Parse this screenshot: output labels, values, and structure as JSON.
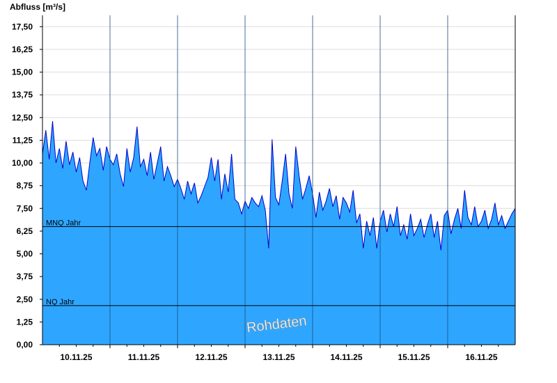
{
  "chart_data": {
    "type": "area",
    "ylabel": "Abfluss [m³/s]",
    "ylim": [
      0,
      18.125
    ],
    "yticks": [
      "0,00",
      "1,25",
      "2,50",
      "3,75",
      "5,00",
      "6,25",
      "7,50",
      "8,75",
      "10,00",
      "11,25",
      "12,50",
      "13,75",
      "15,00",
      "16,25",
      "17,50"
    ],
    "ytick_values": [
      0,
      1.25,
      2.5,
      3.75,
      5,
      6.25,
      7.5,
      8.75,
      10,
      11.25,
      12.5,
      13.75,
      15,
      16.25,
      17.5
    ],
    "xlim": [
      0,
      7
    ],
    "xticks": [
      "10.11.25",
      "11.11.25",
      "12.11.25",
      "13.11.25",
      "14.11.25",
      "15.11.25",
      "16.11.25"
    ],
    "xtick_positions": [
      0.5,
      1.5,
      2.5,
      3.5,
      4.5,
      5.5,
      6.5
    ],
    "day_boundaries": [
      1,
      2,
      3,
      4,
      5,
      6
    ],
    "grid": true,
    "reference_lines": [
      {
        "label": "MNQ Jahr",
        "value": 6.5
      },
      {
        "label": "NQ Jahr",
        "value": 2.15
      }
    ],
    "watermark": "Rohdaten",
    "colors": {
      "fill": "#2ea6ff",
      "line": "#0000cc",
      "grid": "#dddddd"
    },
    "series": [
      {
        "x": [
          0,
          0.05,
          0.1,
          0.15,
          0.2,
          0.25,
          0.3,
          0.35,
          0.4,
          0.45,
          0.5,
          0.55,
          0.6,
          0.65,
          0.7,
          0.75,
          0.8,
          0.85,
          0.9,
          0.95,
          1,
          1.05,
          1.1,
          1.15,
          1.2,
          1.25,
          1.3,
          1.35,
          1.4,
          1.45,
          1.5,
          1.55,
          1.6,
          1.65,
          1.7,
          1.75,
          1.8,
          1.85,
          1.9,
          1.95,
          2,
          2.05,
          2.1,
          2.15,
          2.2,
          2.25,
          2.3,
          2.35,
          2.4,
          2.45,
          2.5,
          2.55,
          2.6,
          2.65,
          2.7,
          2.75,
          2.8,
          2.85,
          2.9,
          2.95,
          3,
          3.05,
          3.1,
          3.15,
          3.2,
          3.25,
          3.3,
          3.35,
          3.4,
          3.45,
          3.5,
          3.55,
          3.6,
          3.65,
          3.7,
          3.75,
          3.8,
          3.85,
          3.9,
          3.95,
          4,
          4.05,
          4.1,
          4.15,
          4.2,
          4.25,
          4.3,
          4.35,
          4.4,
          4.45,
          4.5,
          4.55,
          4.6,
          4.65,
          4.7,
          4.75,
          4.8,
          4.85,
          4.9,
          4.95,
          5,
          5.05,
          5.1,
          5.15,
          5.2,
          5.25,
          5.3,
          5.35,
          5.4,
          5.45,
          5.5,
          5.55,
          5.6,
          5.65,
          5.7,
          5.75,
          5.8,
          5.85,
          5.9,
          5.95,
          6,
          6.05,
          6.1,
          6.15,
          6.2,
          6.25,
          6.3,
          6.35,
          6.4,
          6.45,
          6.5,
          6.55,
          6.6,
          6.65,
          6.7,
          6.75,
          6.8,
          6.85,
          6.9,
          6.95,
          7
        ],
        "y": [
          10.5,
          11.8,
          10.2,
          12.3,
          10.0,
          10.8,
          9.7,
          11.2,
          9.9,
          10.6,
          9.5,
          10.3,
          9.0,
          8.5,
          10.0,
          11.4,
          10.4,
          10.8,
          9.6,
          10.9,
          10.2,
          9.9,
          10.5,
          9.4,
          8.7,
          10.8,
          9.5,
          10.3,
          12.0,
          9.8,
          10.2,
          9.3,
          10.6,
          9.1,
          10.0,
          10.9,
          9.0,
          9.8,
          9.3,
          8.7,
          9.1,
          8.6,
          8.0,
          9.0,
          8.3,
          8.9,
          7.8,
          8.2,
          8.7,
          9.2,
          10.3,
          9.0,
          10.2,
          8.0,
          9.4,
          8.4,
          10.5,
          8.0,
          7.8,
          7.2,
          7.9,
          7.5,
          8.1,
          7.8,
          7.6,
          8.2,
          7.4,
          5.3,
          11.3,
          8.1,
          7.7,
          9.0,
          10.5,
          8.3,
          7.5,
          10.9,
          9.3,
          8.0,
          8.6,
          9.3,
          8.3,
          7.0,
          8.4,
          7.4,
          7.9,
          8.6,
          7.6,
          8.2,
          6.9,
          8.1,
          7.8,
          7.3,
          8.5,
          6.7,
          7.2,
          5.3,
          6.8,
          6.0,
          7.0,
          5.3,
          6.8,
          7.4,
          6.2,
          7.2,
          6.5,
          7.6,
          6.0,
          6.6,
          5.8,
          7.2,
          6.0,
          6.4,
          6.9,
          5.9,
          6.6,
          7.2,
          5.9,
          6.8,
          5.2,
          7.1,
          7.4,
          6.1,
          6.9,
          7.5,
          6.4,
          8.5,
          7.0,
          6.6,
          7.6,
          6.5,
          6.8,
          7.4,
          6.4,
          6.9,
          7.8,
          6.6,
          7.1,
          6.4,
          6.8,
          7.2,
          7.5
        ]
      }
    ]
  }
}
